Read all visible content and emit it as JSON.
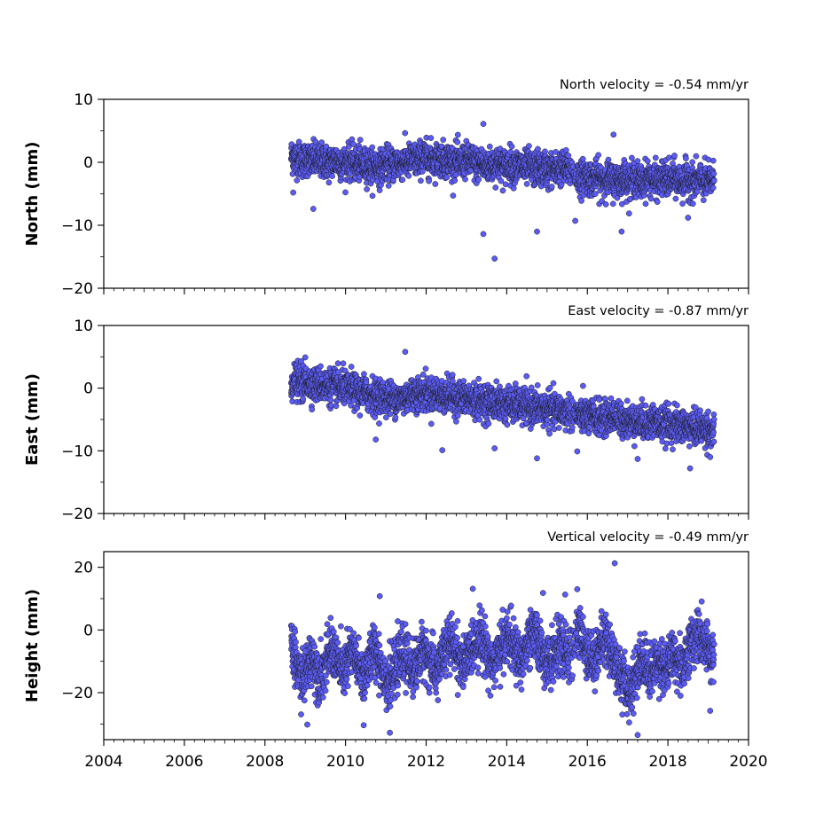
{
  "chart_data": [
    {
      "type": "scatter",
      "title": "North velocity = -0.54 mm/yr",
      "xlabel": "",
      "ylabel": "North (mm)",
      "xlim": [
        2004,
        2020
      ],
      "ylim": [
        -20,
        10
      ],
      "yticks": [
        10,
        0,
        -10,
        -20
      ],
      "ytick_labels": [
        "10",
        "0",
        "−10",
        "−20"
      ],
      "xticks": [
        2004,
        2006,
        2008,
        2010,
        2012,
        2014,
        2016,
        2018,
        2020
      ],
      "xtick_labels_shown": false,
      "grid": false,
      "color": "#5b5bf5",
      "edge_color": "#1a1a1a",
      "series": [
        {
          "x": [
            2008.65,
            2008.75,
            2008.85,
            2008.95,
            2009.05,
            2009.15,
            2009.25,
            2009.35,
            2009.45,
            2009.55,
            2009.65,
            2009.75,
            2009.85,
            2009.95,
            2010.05,
            2010.15,
            2010.25,
            2010.35,
            2010.45,
            2010.55,
            2010.65,
            2010.75,
            2010.85,
            2010.95,
            2011.05,
            2011.15,
            2011.25,
            2011.35,
            2011.45,
            2011.55,
            2011.65,
            2011.75,
            2011.85,
            2011.95,
            2012.05,
            2012.15,
            2012.25,
            2012.35,
            2012.45,
            2012.55,
            2012.65,
            2012.75,
            2012.85,
            2012.95,
            2013.05,
            2013.15,
            2013.25,
            2013.35,
            2013.45,
            2013.55,
            2013.65,
            2013.75,
            2013.85,
            2013.95,
            2014.05,
            2014.15,
            2014.25,
            2014.35,
            2014.45,
            2014.55,
            2014.65,
            2014.75,
            2014.85,
            2014.95,
            2015.05,
            2015.15,
            2015.25,
            2015.35,
            2015.45,
            2015.55,
            2015.75,
            2015.85,
            2015.95,
            2016.05,
            2016.15,
            2016.25,
            2016.35,
            2016.45,
            2016.55,
            2016.65,
            2016.75,
            2016.85,
            2016.95,
            2017.05,
            2017.15,
            2017.25,
            2017.35,
            2017.45,
            2017.55,
            2017.65,
            2017.75,
            2017.85,
            2017.95,
            2018.05,
            2018.15,
            2018.25,
            2018.35,
            2018.45,
            2018.55,
            2018.65,
            2018.75,
            2018.85,
            2018.95,
            2019.05
          ],
          "y": [
            1.0,
            0.8,
            0.5,
            0.3,
            0.6,
            0.2,
            0.4,
            0.1,
            0.3,
            -0.2,
            0.0,
            0.4,
            0.1,
            -0.3,
            0.2,
            0.0,
            -0.4,
            -0.1,
            -0.6,
            -0.3,
            -0.8,
            -0.5,
            -0.9,
            -0.4,
            -0.2,
            -0.5,
            0.1,
            -0.3,
            0.3,
            0.0,
            0.5,
            0.2,
            0.6,
            0.9,
            0.4,
            0.7,
            0.3,
            0.8,
            0.2,
            0.5,
            0.1,
            0.3,
            -0.2,
            0.4,
            0.0,
            0.3,
            -0.5,
            -0.1,
            -0.8,
            -0.3,
            -0.6,
            0.0,
            -0.4,
            -0.7,
            -0.2,
            -0.5,
            -0.9,
            -0.4,
            -1.1,
            -0.6,
            -1.3,
            -0.8,
            -1.2,
            -0.9,
            -1.5,
            -1.0,
            -1.4,
            -0.7,
            -1.2,
            -1.0,
            -2.3,
            -2.6,
            -2.0,
            -2.5,
            -2.8,
            -2.2,
            -3.0,
            -2.4,
            -2.7,
            -3.1,
            -2.6,
            -2.9,
            -2.2,
            -3.2,
            -2.5,
            -2.8,
            -3.3,
            -2.6,
            -2.4,
            -2.9,
            -3.1,
            -2.5,
            -2.7,
            -3.0,
            -2.4,
            -2.8,
            -3.3,
            -2.6,
            -2.9,
            -3.2,
            -2.7,
            -3.0,
            -3.4,
            -2.8
          ]
        }
      ],
      "outliers": [
        {
          "x": 2013.42,
          "y": 6.1
        },
        {
          "x": 2013.42,
          "y": -11.4
        },
        {
          "x": 2013.7,
          "y": -15.3
        },
        {
          "x": 2016.65,
          "y": 4.4
        },
        {
          "x": 2014.75,
          "y": -11.0
        },
        {
          "x": 2016.85,
          "y": -11.0
        },
        {
          "x": 2008.7,
          "y": -4.8
        },
        {
          "x": 2009.2,
          "y": -7.4
        },
        {
          "x": 2015.7,
          "y": -9.3
        },
        {
          "x": 2018.5,
          "y": -8.8
        }
      ]
    },
    {
      "type": "scatter",
      "title": "East velocity = -0.87 mm/yr",
      "xlabel": "",
      "ylabel": "East (mm)",
      "xlim": [
        2004,
        2020
      ],
      "ylim": [
        -20,
        10
      ],
      "yticks": [
        10,
        0,
        -10,
        -20
      ],
      "ytick_labels": [
        "10",
        "0",
        "−10",
        "−20"
      ],
      "xticks": [
        2004,
        2006,
        2008,
        2010,
        2012,
        2014,
        2016,
        2018,
        2020
      ],
      "xtick_labels_shown": false,
      "grid": false,
      "color": "#5b5bf5",
      "edge_color": "#1a1a1a",
      "series": [
        {
          "x": [
            2008.65,
            2008.75,
            2008.85,
            2008.95,
            2009.05,
            2009.15,
            2009.25,
            2009.35,
            2009.45,
            2009.55,
            2009.65,
            2009.75,
            2009.85,
            2009.95,
            2010.05,
            2010.15,
            2010.25,
            2010.35,
            2010.45,
            2010.55,
            2010.65,
            2010.75,
            2010.85,
            2010.95,
            2011.05,
            2011.15,
            2011.25,
            2011.35,
            2011.45,
            2011.55,
            2011.65,
            2011.75,
            2011.85,
            2011.95,
            2012.05,
            2012.15,
            2012.25,
            2012.35,
            2012.45,
            2012.55,
            2012.65,
            2012.75,
            2012.85,
            2012.95,
            2013.05,
            2013.15,
            2013.25,
            2013.35,
            2013.45,
            2013.55,
            2013.65,
            2013.75,
            2013.85,
            2013.95,
            2014.05,
            2014.15,
            2014.25,
            2014.35,
            2014.45,
            2014.55,
            2014.65,
            2014.75,
            2014.85,
            2014.95,
            2015.05,
            2015.15,
            2015.25,
            2015.35,
            2015.45,
            2015.55,
            2015.75,
            2015.85,
            2015.95,
            2016.05,
            2016.15,
            2016.25,
            2016.35,
            2016.45,
            2016.55,
            2016.65,
            2016.75,
            2016.85,
            2016.95,
            2017.05,
            2017.15,
            2017.25,
            2017.35,
            2017.45,
            2017.55,
            2017.65,
            2017.75,
            2017.85,
            2017.95,
            2018.05,
            2018.15,
            2018.25,
            2018.35,
            2018.45,
            2018.55,
            2018.65,
            2018.75,
            2018.85,
            2018.95,
            2019.05
          ],
          "y": [
            0.8,
            1.2,
            0.9,
            0.6,
            1.0,
            0.7,
            0.4,
            0.8,
            0.3,
            0.5,
            0.1,
            0.4,
            -0.1,
            0.2,
            -0.4,
            -0.1,
            -0.6,
            -0.9,
            -0.5,
            -1.2,
            -0.8,
            -1.5,
            -1.1,
            -1.6,
            -1.3,
            -1.8,
            -1.4,
            -1.9,
            -1.5,
            -1.2,
            -1.0,
            -0.7,
            -1.1,
            -0.6,
            -0.9,
            -1.2,
            -0.8,
            -1.3,
            -1.0,
            -1.5,
            -1.2,
            -1.7,
            -1.4,
            -1.9,
            -1.6,
            -2.1,
            -1.8,
            -2.3,
            -1.9,
            -2.4,
            -2.1,
            -2.6,
            -2.2,
            -2.7,
            -2.4,
            -2.9,
            -2.5,
            -3.0,
            -2.7,
            -3.2,
            -2.9,
            -3.4,
            -3.0,
            -3.6,
            -3.2,
            -3.7,
            -3.4,
            -3.9,
            -3.6,
            -3.8,
            -4.2,
            -4.6,
            -4.3,
            -4.8,
            -4.4,
            -4.9,
            -4.5,
            -5.0,
            -4.7,
            -4.4,
            -4.9,
            -5.2,
            -4.8,
            -5.4,
            -5.0,
            -5.6,
            -5.2,
            -5.7,
            -5.4,
            -5.1,
            -5.6,
            -5.9,
            -5.5,
            -6.0,
            -5.7,
            -6.2,
            -5.8,
            -6.3,
            -6.0,
            -6.5,
            -6.1,
            -6.6,
            -6.3,
            -6.8
          ]
        }
      ],
      "outliers": [
        {
          "x": 2011.48,
          "y": 5.8
        },
        {
          "x": 2009.0,
          "y": 4.9
        },
        {
          "x": 2012.4,
          "y": -9.9
        },
        {
          "x": 2014.75,
          "y": -11.2
        },
        {
          "x": 2017.25,
          "y": -11.3
        },
        {
          "x": 2018.55,
          "y": -12.8
        },
        {
          "x": 2019.05,
          "y": -11.0
        },
        {
          "x": 2015.75,
          "y": -10.1
        },
        {
          "x": 2010.75,
          "y": -8.2
        },
        {
          "x": 2013.7,
          "y": -9.6
        }
      ]
    },
    {
      "type": "scatter",
      "title": "Vertical velocity = -0.49 mm/yr",
      "xlabel": "",
      "ylabel": "Height (mm)",
      "xlim": [
        2004,
        2020
      ],
      "ylim": [
        -35,
        25
      ],
      "yticks": [
        20,
        0,
        -20
      ],
      "ytick_labels": [
        "20",
        "0",
        "−20"
      ],
      "xticks": [
        2004,
        2006,
        2008,
        2010,
        2012,
        2014,
        2016,
        2018,
        2020
      ],
      "xtick_labels": [
        "2004",
        "2006",
        "2008",
        "2010",
        "2012",
        "2014",
        "2016",
        "2018",
        "2020"
      ],
      "grid": false,
      "color": "#5b5bf5",
      "edge_color": "#1a1a1a",
      "series": [
        {
          "x": [
            2008.65,
            2008.75,
            2008.85,
            2008.95,
            2009.05,
            2009.15,
            2009.25,
            2009.35,
            2009.45,
            2009.55,
            2009.65,
            2009.75,
            2009.85,
            2009.95,
            2010.05,
            2010.15,
            2010.25,
            2010.35,
            2010.45,
            2010.55,
            2010.65,
            2010.75,
            2010.85,
            2010.95,
            2011.05,
            2011.15,
            2011.25,
            2011.35,
            2011.45,
            2011.55,
            2011.65,
            2011.75,
            2011.85,
            2011.95,
            2012.05,
            2012.15,
            2012.25,
            2012.35,
            2012.45,
            2012.55,
            2012.65,
            2012.75,
            2012.85,
            2012.95,
            2013.05,
            2013.15,
            2013.25,
            2013.35,
            2013.45,
            2013.55,
            2013.65,
            2013.75,
            2013.85,
            2013.95,
            2014.05,
            2014.15,
            2014.25,
            2014.35,
            2014.45,
            2014.55,
            2014.65,
            2014.75,
            2014.85,
            2014.95,
            2015.05,
            2015.15,
            2015.25,
            2015.35,
            2015.45,
            2015.55,
            2015.75,
            2015.85,
            2015.95,
            2016.05,
            2016.15,
            2016.25,
            2016.35,
            2016.45,
            2016.55,
            2016.65,
            2016.75,
            2016.85,
            2016.95,
            2017.05,
            2017.15,
            2017.25,
            2017.35,
            2017.45,
            2017.55,
            2017.65,
            2017.75,
            2017.85,
            2017.95,
            2018.05,
            2018.15,
            2018.25,
            2018.35,
            2018.45,
            2018.55,
            2018.65,
            2018.75,
            2018.85,
            2018.95,
            2019.05
          ],
          "y": [
            -6,
            -10,
            -14,
            -16,
            -12,
            -8,
            -11,
            -15,
            -13,
            -9,
            -6,
            -8,
            -12,
            -14,
            -10,
            -7,
            -9,
            -13,
            -15,
            -11,
            -8,
            -6,
            -10,
            -14,
            -17,
            -15,
            -12,
            -9,
            -7,
            -10,
            -13,
            -11,
            -8,
            -6,
            -9,
            -12,
            -14,
            -10,
            -7,
            -5,
            -4,
            -7,
            -10,
            -12,
            -8,
            -5,
            -3,
            -2,
            -5,
            -8,
            -11,
            -9,
            -6,
            -3,
            -2,
            -5,
            -8,
            -10,
            -7,
            -4,
            -2,
            -3,
            -6,
            -9,
            -11,
            -8,
            -6,
            -5,
            -7,
            -10,
            1,
            -2,
            -5,
            -8,
            -10,
            -7,
            -4,
            -2,
            -5,
            -9,
            -12,
            -15,
            -18,
            -20,
            -16,
            -12,
            -9,
            -11,
            -14,
            -12,
            -9,
            -11,
            -13,
            -10,
            -8,
            -10,
            -12,
            -8,
            -5,
            -3,
            -1,
            -4,
            -6,
            -8
          ]
        }
      ],
      "outliers": [
        {
          "x": 2016.68,
          "y": 21.3
        },
        {
          "x": 2017.25,
          "y": -33.5
        },
        {
          "x": 2011.1,
          "y": -32.8
        },
        {
          "x": 2009.05,
          "y": -30.2
        },
        {
          "x": 2010.45,
          "y": -30.4
        },
        {
          "x": 2010.85,
          "y": 10.8
        },
        {
          "x": 2015.75,
          "y": 13.0
        },
        {
          "x": 2019.05,
          "y": -25.8
        },
        {
          "x": 2015.45,
          "y": 11.3
        },
        {
          "x": 2014.9,
          "y": 11.8
        }
      ]
    }
  ]
}
